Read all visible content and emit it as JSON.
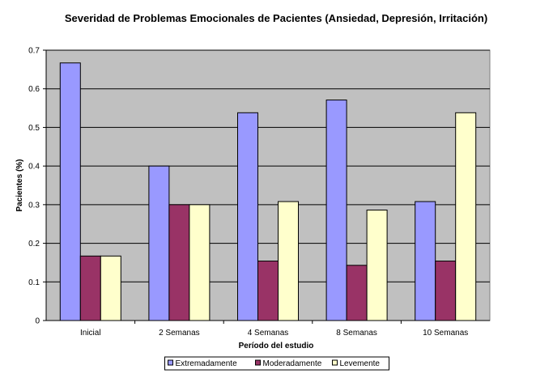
{
  "chart_data": {
    "type": "bar",
    "title": "Severidad de Problemas Emocionales de Pacientes (Ansiedad, Depresión, Irritación)",
    "xlabel": "Período del estudio",
    "ylabel": "Pacientes (%)",
    "ylim": [
      0,
      0.7
    ],
    "yticks": [
      "0",
      "0.1",
      "0.2",
      "0.3",
      "0.4",
      "0.5",
      "0.6",
      "0.7"
    ],
    "categories": [
      "Inicial",
      "2 Semanas",
      "4 Semanas",
      "8 Semanas",
      "10 Semanas"
    ],
    "series": [
      {
        "name": "Extremadamente",
        "color": "#9999ff",
        "values": [
          0.667,
          0.4,
          0.538,
          0.571,
          0.308
        ]
      },
      {
        "name": "Moderadamente",
        "color": "#993366",
        "values": [
          0.167,
          0.3,
          0.154,
          0.143,
          0.154
        ]
      },
      {
        "name": "Levemente",
        "color": "#ffffcc",
        "values": [
          0.167,
          0.3,
          0.308,
          0.286,
          0.538
        ]
      }
    ],
    "grid": true,
    "legend_position": "bottom",
    "plot_background": "#c0c0c0"
  }
}
